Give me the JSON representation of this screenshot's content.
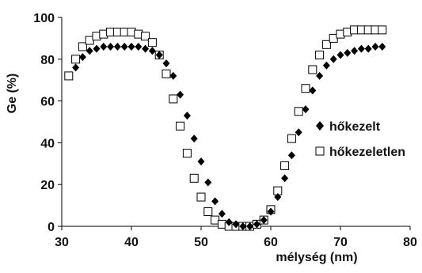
{
  "chart_data": {
    "type": "scatter",
    "xlabel": "mélység (nm)",
    "ylabel": "Ge (%)",
    "xlim": [
      30,
      80
    ],
    "ylim": [
      0,
      100
    ],
    "x_ticks": [
      "30",
      "40",
      "50",
      "60",
      "70",
      "80"
    ],
    "y_ticks": [
      "0",
      "20",
      "40",
      "60",
      "80",
      "100"
    ],
    "grid": false,
    "legend_position": "center-right",
    "series": [
      {
        "name": "hőkezelt",
        "marker": "diamond-filled",
        "color": "#000000",
        "x": [
          32,
          33,
          34,
          35,
          36,
          37,
          38,
          39,
          40,
          41,
          42,
          43,
          44,
          45,
          46,
          47,
          48,
          49,
          50,
          51,
          52,
          53,
          54,
          55,
          56,
          57,
          58,
          59,
          60,
          61,
          62,
          63,
          64,
          65,
          66,
          67,
          68,
          69,
          70,
          71,
          72,
          73,
          74,
          75,
          76
        ],
        "y": [
          76,
          81,
          84,
          85,
          86,
          86,
          86,
          86,
          86,
          86,
          85,
          84,
          82,
          78,
          72,
          63,
          53,
          42,
          31,
          21,
          12,
          6,
          2,
          1,
          0,
          0,
          1,
          3,
          7,
          14,
          23,
          34,
          45,
          56,
          65,
          72,
          77,
          80,
          82,
          83,
          84,
          85,
          85,
          86,
          86
        ]
      },
      {
        "name": "hőkezeletlen",
        "marker": "square-open",
        "color": "#000000",
        "x": [
          31,
          32,
          33,
          34,
          35,
          36,
          37,
          38,
          39,
          40,
          41,
          42,
          43,
          44,
          45,
          46,
          47,
          48,
          49,
          50,
          51,
          52,
          53,
          54,
          55,
          56,
          57,
          58,
          59,
          60,
          61,
          62,
          63,
          64,
          65,
          66,
          67,
          68,
          69,
          70,
          71,
          72,
          73,
          74,
          75,
          76
        ],
        "y": [
          72,
          80,
          86,
          89,
          91,
          92,
          93,
          93,
          93,
          93,
          92,
          91,
          88,
          82,
          73,
          61,
          48,
          35,
          23,
          14,
          7,
          3,
          1,
          0,
          0,
          0,
          0,
          1,
          3,
          8,
          17,
          29,
          42,
          55,
          66,
          75,
          82,
          87,
          90,
          92,
          93,
          94,
          94,
          94,
          94,
          94
        ]
      }
    ]
  }
}
